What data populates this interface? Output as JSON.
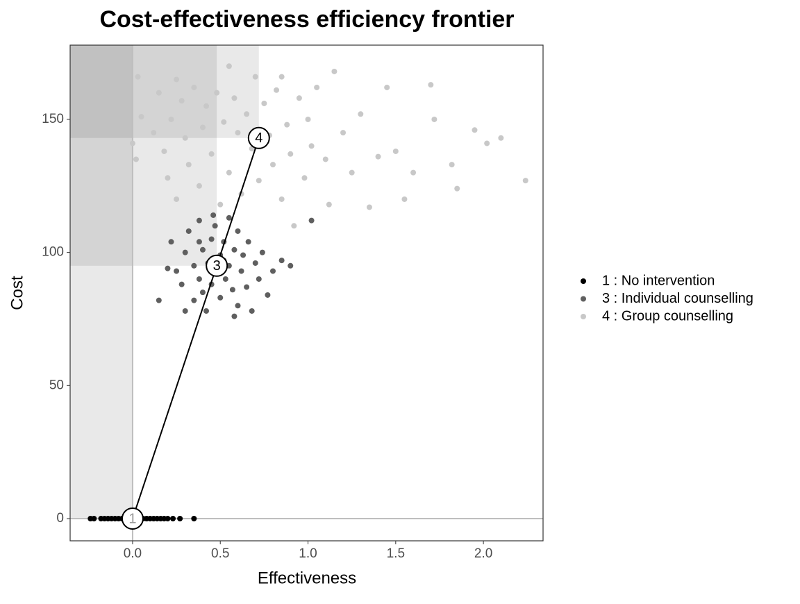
{
  "chart_data": {
    "type": "scatter",
    "title": "Cost-effectiveness efficiency frontier",
    "x_label": "Effectiveness",
    "y_label": "Cost",
    "xlim": [
      -0.356,
      2.34
    ],
    "ylim": [
      -8.35,
      177.9
    ],
    "xticks": [
      {
        "value": 0,
        "label": "0.0"
      },
      0.5,
      {
        "value": 1,
        "label": "1.0"
      },
      1.5,
      {
        "value": 2,
        "label": "2.0"
      }
    ],
    "yticks": [
      0,
      50,
      100,
      150
    ],
    "legend": "right",
    "series": [
      {
        "name": "1 : No intervention",
        "color": "#000000",
        "x": [
          -0.24,
          -0.22,
          -0.18,
          -0.16,
          -0.14,
          -0.12,
          -0.1,
          -0.08,
          -0.06,
          -0.04,
          -0.02,
          0,
          0.02,
          0.04,
          0.06,
          0.08,
          0.1,
          0.12,
          0.14,
          0.16,
          0.18,
          0.2,
          0.23,
          0.27,
          0.35
        ],
        "values": [
          0,
          0,
          0,
          0,
          0,
          0,
          0,
          0,
          0,
          0,
          0,
          0,
          0,
          0,
          0,
          0,
          0,
          0,
          0,
          0,
          0,
          0,
          0,
          0,
          0
        ]
      },
      {
        "name": "3 : Individual counselling",
        "color": "#5f5f5f",
        "x": [
          0.22,
          0.25,
          0.28,
          0.3,
          0.32,
          0.35,
          0.35,
          0.38,
          0.38,
          0.4,
          0.4,
          0.42,
          0.43,
          0.45,
          0.45,
          0.47,
          0.48,
          0.5,
          0.5,
          0.52,
          0.53,
          0.55,
          0.55,
          0.57,
          0.58,
          0.6,
          0.6,
          0.62,
          0.63,
          0.65,
          0.66,
          0.68,
          0.7,
          0.72,
          0.74,
          0.77,
          0.8,
          0.85,
          0.9,
          0.2,
          0.15,
          0.3,
          0.46,
          0.58,
          1.02,
          0.38,
          0.52
        ],
        "values": [
          104,
          93,
          88,
          100,
          108,
          82,
          95,
          112,
          90,
          85,
          101,
          78,
          96,
          105,
          88,
          110,
          92,
          99,
          83,
          104,
          90,
          113,
          95,
          86,
          101,
          80,
          108,
          93,
          99,
          87,
          104,
          78,
          96,
          90,
          100,
          84,
          93,
          97,
          95,
          94,
          82,
          78,
          114,
          76,
          112,
          104,
          97
        ]
      },
      {
        "name": "4 : Group counselling",
        "color": "#c8c8c8",
        "x": [
          0.0,
          0.02,
          0.03,
          0.05,
          0.12,
          0.15,
          0.18,
          0.2,
          0.22,
          0.25,
          0.28,
          0.3,
          0.32,
          0.35,
          0.38,
          0.4,
          0.42,
          0.45,
          0.48,
          0.5,
          0.52,
          0.55,
          0.58,
          0.6,
          0.62,
          0.65,
          0.68,
          0.7,
          0.72,
          0.75,
          0.78,
          0.8,
          0.82,
          0.85,
          0.88,
          0.9,
          0.92,
          0.95,
          0.98,
          1.0,
          1.02,
          1.05,
          1.1,
          1.12,
          1.15,
          1.2,
          1.25,
          1.3,
          1.35,
          1.4,
          1.45,
          1.5,
          1.55,
          1.6,
          1.7,
          1.72,
          1.82,
          1.85,
          1.95,
          2.02,
          2.1,
          2.24,
          0.25,
          0.55,
          0.85
        ],
        "values": [
          141,
          135,
          166,
          151,
          145,
          160,
          138,
          128,
          150,
          120,
          157,
          143,
          133,
          162,
          125,
          147,
          155,
          137,
          160,
          118,
          149,
          130,
          158,
          145,
          122,
          152,
          139,
          166,
          127,
          156,
          144,
          133,
          161,
          120,
          148,
          137,
          110,
          158,
          128,
          150,
          140,
          162,
          135,
          118,
          168,
          145,
          130,
          152,
          117,
          136,
          162,
          138,
          120,
          130,
          163,
          150,
          133,
          124,
          146,
          141,
          143,
          127,
          165,
          170,
          166
        ]
      }
    ],
    "frontier": {
      "labels": [
        "1",
        "3",
        "4"
      ],
      "x": [
        0,
        0.48,
        0.72
      ],
      "values": [
        0,
        95,
        143
      ]
    }
  }
}
